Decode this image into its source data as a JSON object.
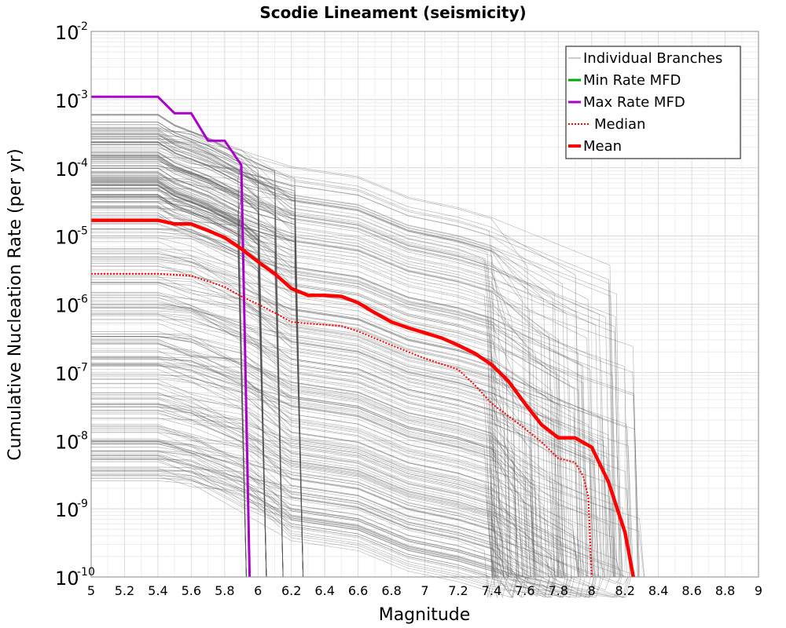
{
  "chart_data": {
    "type": "line",
    "title": "Scodie Lineament (seismicity)",
    "xlabel": "Magnitude",
    "ylabel": "Cumulative Nucleation Rate (per yr)",
    "xlim": [
      5,
      9
    ],
    "ylim": [
      1e-10,
      0.01
    ],
    "yscale": "log",
    "grid": true,
    "legend_position": "top-right",
    "x_ticks": [
      "5",
      "5.2",
      "5.4",
      "5.6",
      "5.8",
      "6",
      "6.2",
      "6.4",
      "6.6",
      "6.8",
      "7",
      "7.2",
      "7.4",
      "7.6",
      "7.8",
      "8",
      "8.2",
      "8.4",
      "8.6",
      "8.8",
      "9"
    ],
    "y_ticks": [
      {
        "base": "10",
        "exp": "-2"
      },
      {
        "base": "10",
        "exp": "-3"
      },
      {
        "base": "10",
        "exp": "-4"
      },
      {
        "base": "10",
        "exp": "-5"
      },
      {
        "base": "10",
        "exp": "-6"
      },
      {
        "base": "10",
        "exp": "-7"
      },
      {
        "base": "10",
        "exp": "-8"
      },
      {
        "base": "10",
        "exp": "-9"
      },
      {
        "base": "10",
        "exp": "-10"
      }
    ],
    "series": [
      {
        "name": "Individual Branches",
        "color": "#555555",
        "style": "thin",
        "note_count_drawn": 0
      },
      {
        "name": "Min Rate MFD",
        "color": "#00aa00",
        "style": "solid",
        "x": [],
        "y": []
      },
      {
        "name": "Max Rate MFD",
        "color": "#aa00cc",
        "style": "solid",
        "x": [
          5.0,
          5.4,
          5.5,
          5.6,
          5.7,
          5.8,
          5.9,
          5.95
        ],
        "y": [
          0.0011,
          0.0011,
          0.00063,
          0.00063,
          0.00025,
          0.00025,
          0.00011,
          1e-10
        ]
      },
      {
        "name": "Median",
        "color": "#ff0000",
        "style": "dotted",
        "x": [
          5.0,
          5.4,
          5.6,
          5.8,
          5.9,
          6.0,
          6.1,
          6.2,
          6.3,
          6.5,
          6.6,
          6.8,
          7.0,
          7.2,
          7.3,
          7.4,
          7.5,
          7.6,
          7.7,
          7.8,
          7.9,
          7.95,
          7.98,
          8.0
        ],
        "y": [
          2.8e-06,
          2.8e-06,
          2.6e-06,
          1.8e-06,
          1.3e-06,
          1e-06,
          7.5e-07,
          5.5e-07,
          5.2e-07,
          4.8e-07,
          4e-07,
          2.5e-07,
          1.6e-07,
          1.1e-07,
          6.5e-08,
          3.5e-08,
          2.3e-08,
          1.5e-08,
          9.5e-09,
          5.5e-09,
          4.8e-09,
          3e-09,
          1.5e-09,
          1e-10
        ]
      },
      {
        "name": "Mean",
        "color": "#ff0000",
        "style": "thick",
        "x": [
          5.0,
          5.4,
          5.5,
          5.6,
          5.7,
          5.8,
          5.9,
          6.0,
          6.1,
          6.2,
          6.3,
          6.4,
          6.5,
          6.6,
          6.7,
          6.8,
          6.9,
          7.0,
          7.1,
          7.2,
          7.3,
          7.4,
          7.5,
          7.6,
          7.7,
          7.8,
          7.9,
          8.0,
          8.1,
          8.2,
          8.25
        ],
        "y": [
          1.7e-05,
          1.7e-05,
          1.5e-05,
          1.5e-05,
          1.2e-05,
          9.5e-06,
          6.5e-06,
          4.2e-06,
          2.8e-06,
          1.7e-06,
          1.35e-06,
          1.35e-06,
          1.3e-06,
          1.05e-06,
          7.5e-07,
          5.5e-07,
          4.5e-07,
          3.8e-07,
          3.2e-07,
          2.5e-07,
          1.9e-07,
          1.3e-07,
          7.5e-08,
          3.5e-08,
          1.7e-08,
          1.1e-08,
          1.1e-08,
          8e-09,
          2.5e-09,
          4.5e-10,
          1e-10
        ]
      }
    ]
  }
}
